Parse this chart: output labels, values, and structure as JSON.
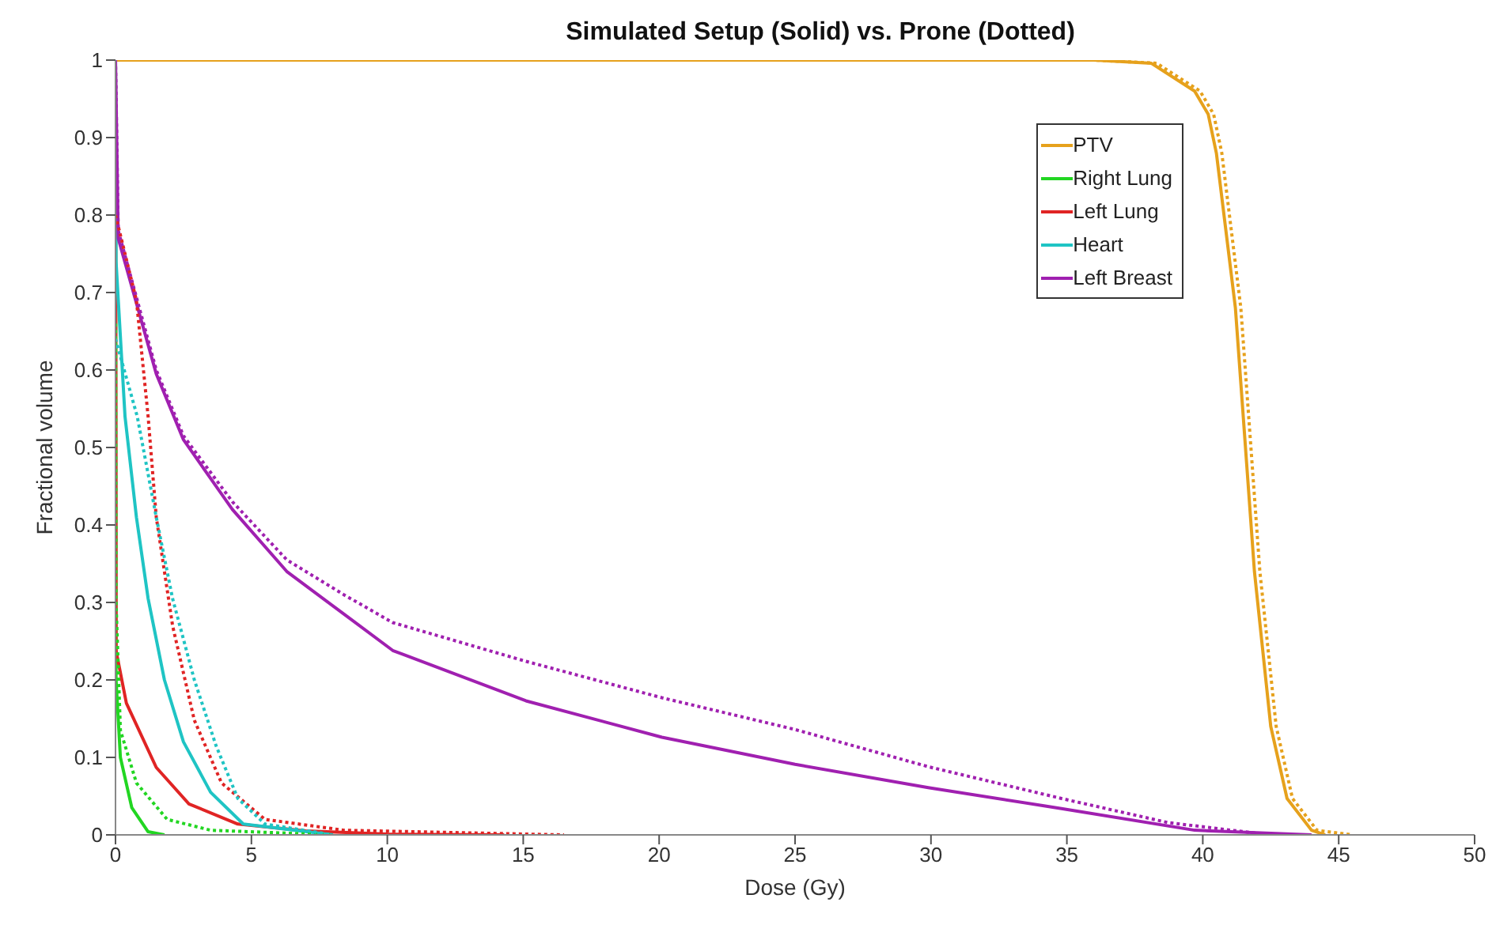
{
  "chart_data": {
    "type": "line",
    "title": "Simulated Setup (Solid) vs. Prone (Dotted)",
    "xlabel": "Dose (Gy)",
    "ylabel": "Fractional volume",
    "xlim": [
      0,
      50
    ],
    "xticks": [
      0,
      5,
      10,
      15,
      20,
      25,
      30,
      35,
      40,
      45,
      50
    ],
    "ylim": [
      0,
      1
    ],
    "yticks": [
      0,
      0.1,
      0.2,
      0.3,
      0.4,
      0.5,
      0.6,
      0.7,
      0.8,
      0.9,
      1
    ],
    "grid": false,
    "legend": "top right",
    "series": [
      {
        "name": "PTV",
        "color": "#e6a11c",
        "line_style": "solid",
        "x": [
          0,
          10,
          20,
          30,
          36,
          38.1,
          39.7,
          40.2,
          40.5,
          41.2,
          41.9,
          42.5,
          43.1,
          44,
          44.5
        ],
        "values": [
          1,
          1,
          1,
          1,
          1,
          0.996,
          0.96,
          0.93,
          0.88,
          0.68,
          0.34,
          0.14,
          0.047,
          0.006,
          0
        ]
      },
      {
        "name": "Right Lung",
        "color": "#22d622",
        "line_style": "solid",
        "x": [
          0,
          0.02,
          0.18,
          0.6,
          1.2,
          1.8
        ],
        "values": [
          1,
          0.2,
          0.1,
          0.035,
          0.004,
          0
        ]
      },
      {
        "name": "Left Lung",
        "color": "#e02424",
        "line_style": "solid",
        "x": [
          0,
          0.02,
          0.4,
          1.5,
          2.7,
          4.5,
          7,
          10,
          14.3
        ],
        "values": [
          1,
          0.238,
          0.17,
          0.087,
          0.04,
          0.014,
          0.005,
          0.001,
          0
        ]
      },
      {
        "name": "Heart",
        "color": "#1fc4c4",
        "line_style": "solid",
        "x": [
          0,
          0.02,
          0.35,
          0.77,
          1.2,
          1.8,
          2.5,
          3.5,
          4.7,
          8
        ],
        "values": [
          1,
          0.74,
          0.54,
          0.41,
          0.305,
          0.2,
          0.12,
          0.055,
          0.014,
          0
        ]
      },
      {
        "name": "Left Breast",
        "color": "#a020b0",
        "line_style": "solid",
        "x": [
          0,
          0.1,
          1.5,
          2.5,
          4.3,
          6.3,
          8.4,
          10.2,
          15.1,
          20.1,
          25,
          29.9,
          34.8,
          39.7,
          44
        ],
        "values": [
          1,
          0.77,
          0.595,
          0.51,
          0.42,
          0.34,
          0.285,
          0.238,
          0.173,
          0.126,
          0.091,
          0.061,
          0.034,
          0.006,
          0
        ]
      },
      {
        "color": "#e6a11c",
        "line_style": "dotted",
        "x": [
          0,
          10,
          20,
          30,
          36,
          38.3,
          39.9,
          40.4,
          40.7,
          41.4,
          42.1,
          42.7,
          43.3,
          44.2,
          45.5
        ],
        "values": [
          1,
          1,
          1,
          1,
          1,
          0.996,
          0.96,
          0.93,
          0.88,
          0.68,
          0.34,
          0.14,
          0.047,
          0.006,
          0
        ]
      },
      {
        "color": "#22d622",
        "line_style": "dotted",
        "x": [
          0,
          0.02,
          0.18,
          0.77,
          1.9,
          3.5,
          8
        ],
        "values": [
          0.66,
          0.3,
          0.135,
          0.067,
          0.02,
          0.006,
          0
        ]
      },
      {
        "color": "#e02424",
        "line_style": "dotted",
        "x": [
          0,
          0.77,
          1.2,
          1.5,
          2.1,
          2.9,
          3.9,
          5.5,
          8.4,
          16.5
        ],
        "values": [
          0.8,
          0.69,
          0.54,
          0.41,
          0.27,
          0.148,
          0.067,
          0.02,
          0.006,
          0
        ]
      },
      {
        "color": "#1fc4c4",
        "line_style": "dotted",
        "x": [
          0,
          0.8,
          1.5,
          2.1,
          2.9,
          3.7,
          4.5,
          5.5,
          8
        ],
        "values": [
          0.64,
          0.54,
          0.41,
          0.305,
          0.2,
          0.115,
          0.047,
          0.014,
          0
        ]
      },
      {
        "color": "#a020b0",
        "line_style": "dotted",
        "x": [
          0,
          0.1,
          1.5,
          2.5,
          4.3,
          6.3,
          8.4,
          10.2,
          15.1,
          20.1,
          25,
          29.9,
          34.8,
          38.7,
          42
        ],
        "values": [
          1,
          0.78,
          0.6,
          0.515,
          0.43,
          0.355,
          0.31,
          0.274,
          0.224,
          0.177,
          0.136,
          0.088,
          0.047,
          0.016,
          0.002
        ]
      }
    ]
  }
}
